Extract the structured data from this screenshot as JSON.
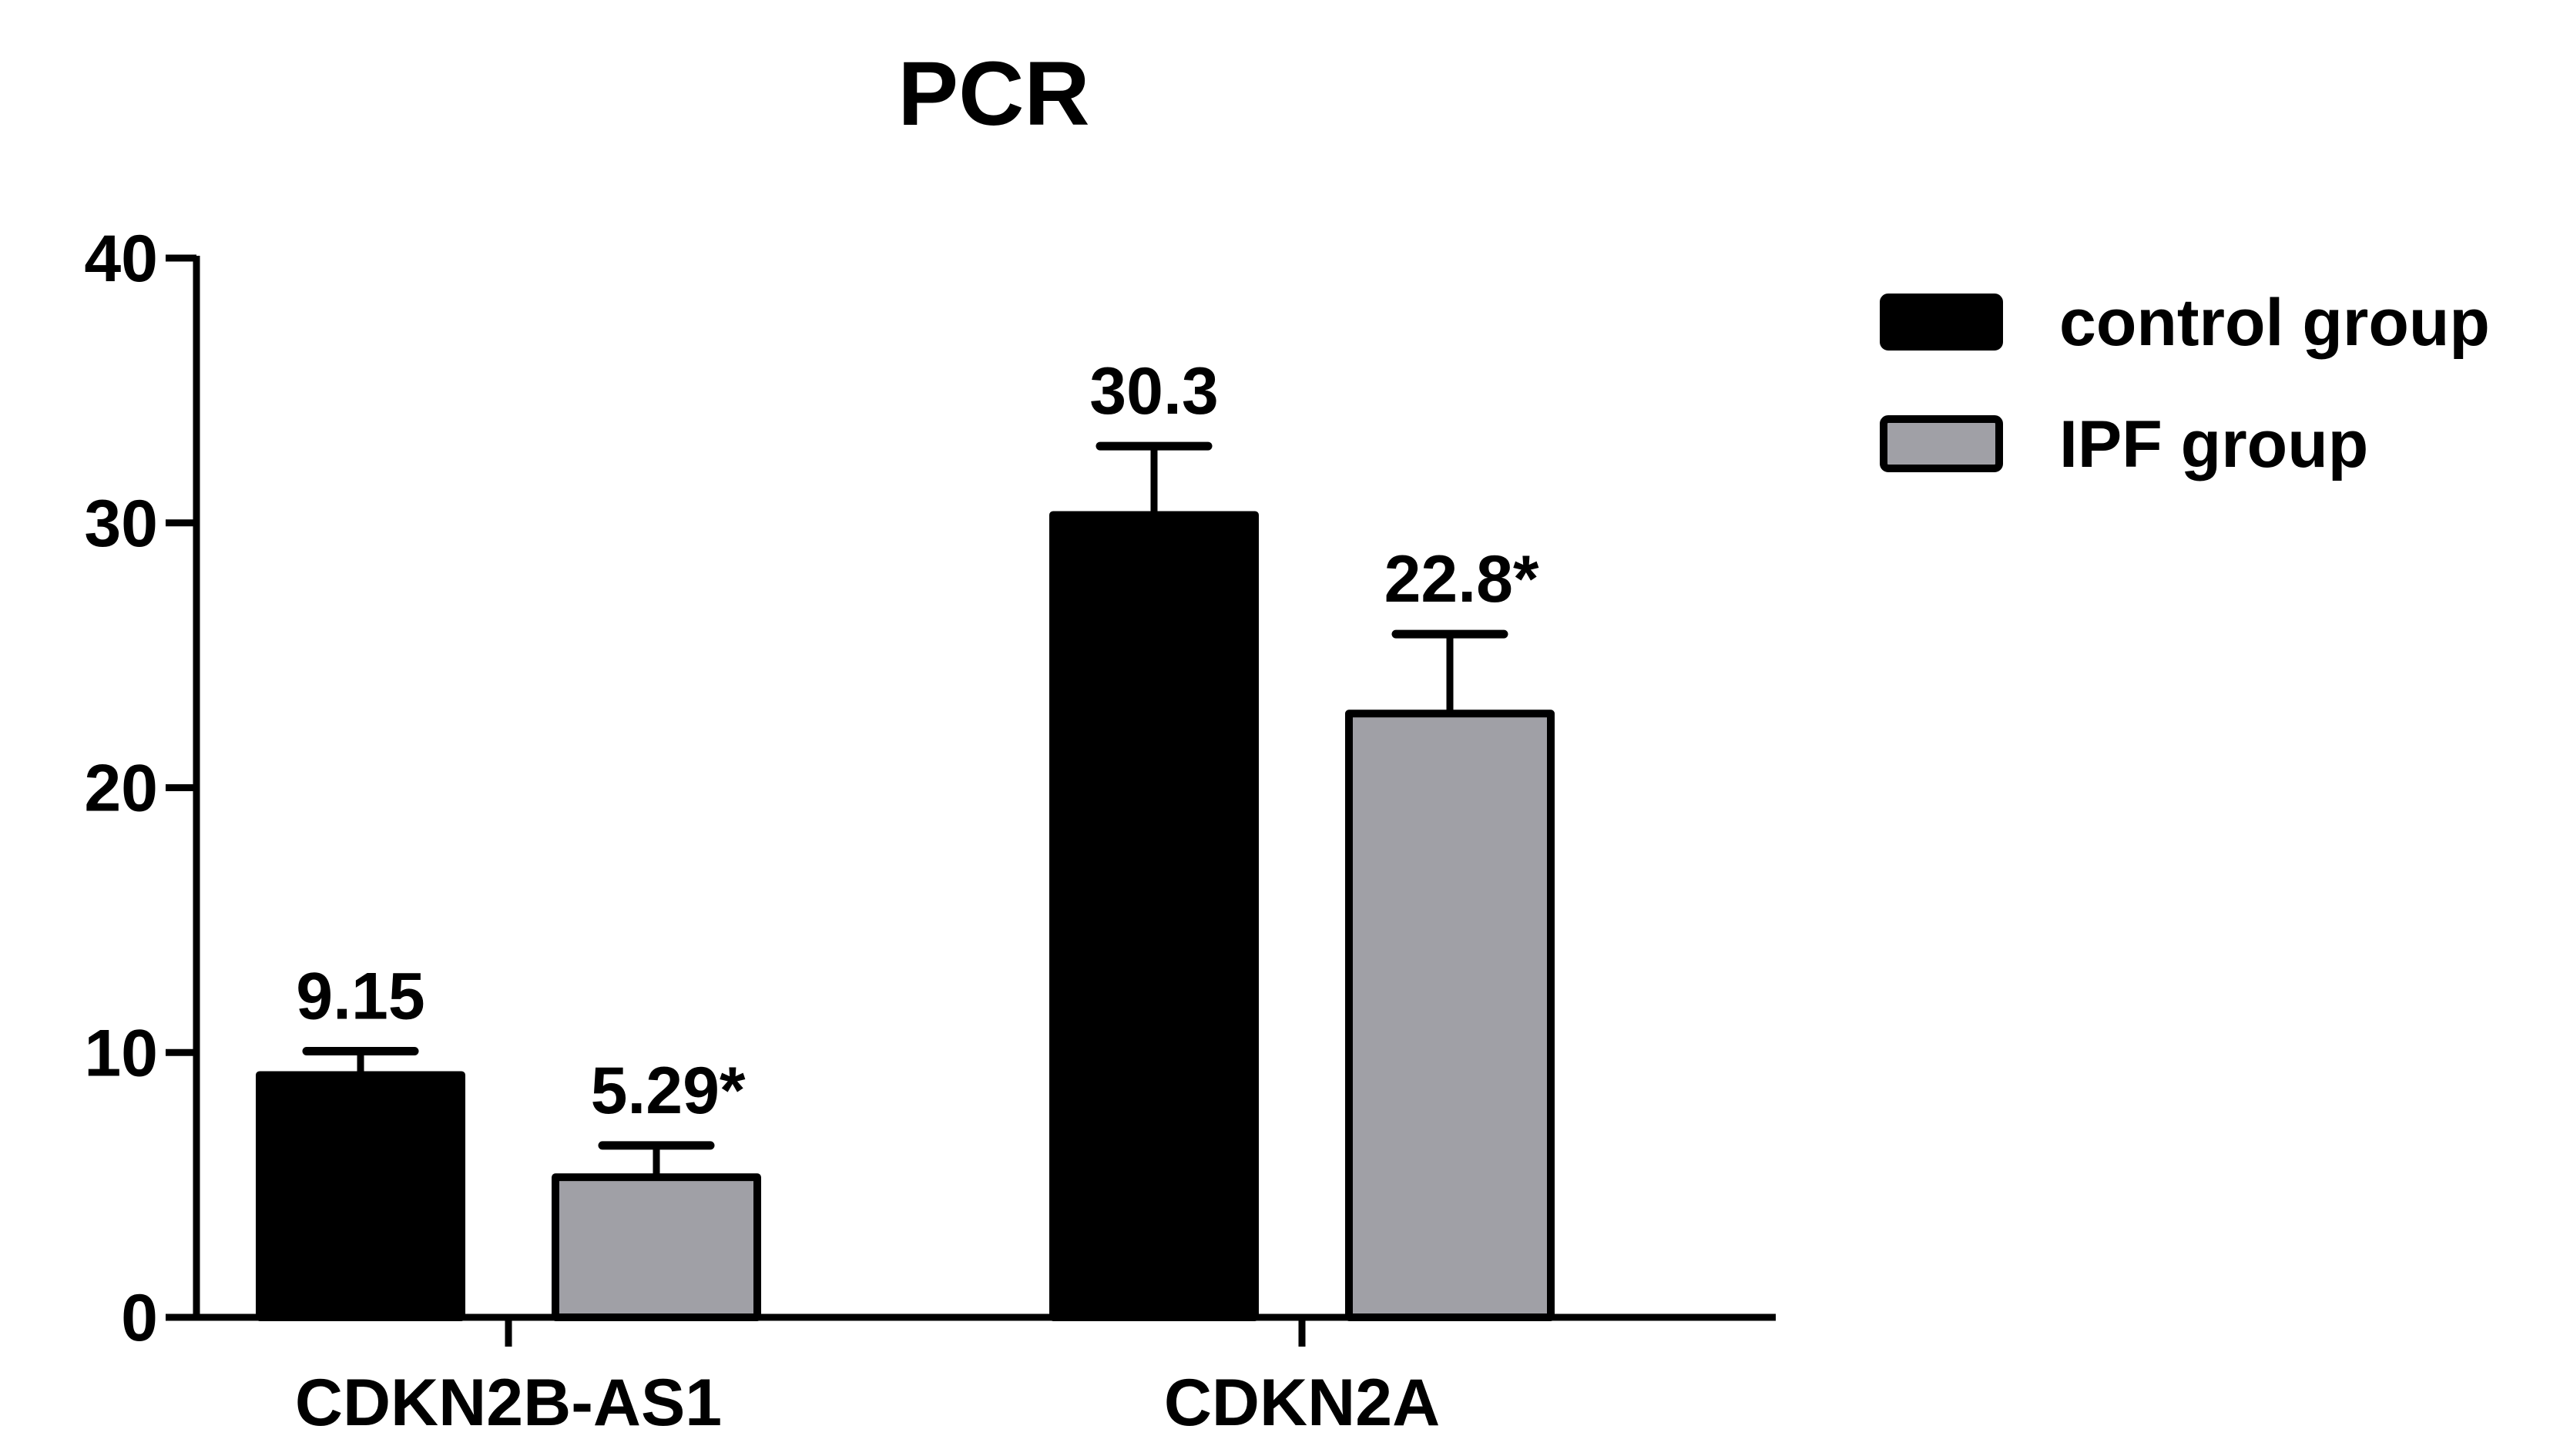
{
  "chart_data": {
    "type": "bar",
    "title": "PCR",
    "xlabel": "",
    "ylabel": "",
    "categories": [
      "CDKN2B-AS1",
      "CDKN2A"
    ],
    "ylim": [
      0,
      40
    ],
    "yticks": [
      0,
      10,
      20,
      30,
      40
    ],
    "grid": false,
    "legend_position": "top-right",
    "series": [
      {
        "name": "control group",
        "color": "#000000",
        "values": [
          9.15,
          30.3
        ],
        "errors": [
          0.9,
          2.6
        ],
        "labels": [
          "9.15",
          "30.3"
        ]
      },
      {
        "name": "IPF group",
        "color": "#a0a0a6",
        "values": [
          5.29,
          22.8
        ],
        "errors": [
          1.2,
          3.0
        ],
        "labels": [
          "5.29*",
          "22.8*"
        ]
      }
    ]
  }
}
